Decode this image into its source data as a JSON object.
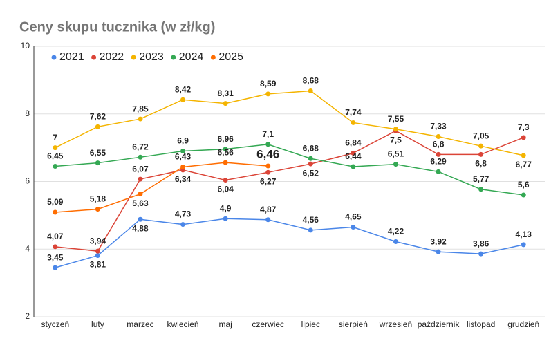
{
  "chart_data": {
    "type": "line",
    "title": "Ceny skupu tucznika (w zł/kg)",
    "categories": [
      "styczeń",
      "luty",
      "marzec",
      "kwiecień",
      "maj",
      "czerwiec",
      "lipiec",
      "sierpień",
      "wrzesień",
      "październik",
      "listopad",
      "grudzień"
    ],
    "series": [
      {
        "name": "2021",
        "color": "#4a86e8",
        "values": [
          3.45,
          3.81,
          4.88,
          4.73,
          4.9,
          4.87,
          4.56,
          4.65,
          4.22,
          3.92,
          3.86,
          4.13
        ],
        "value_labels": [
          "3,45",
          "3,81",
          "4,88",
          "4,73",
          "4,9",
          "4,87",
          "4,56",
          "4,65",
          "4,22",
          "3,92",
          "3,86",
          "4,13"
        ]
      },
      {
        "name": "2022",
        "color": "#db4437",
        "values": [
          4.07,
          3.94,
          6.07,
          6.34,
          6.04,
          6.27,
          6.52,
          6.84,
          7.5,
          6.8,
          6.8,
          7.3
        ],
        "value_labels": [
          "4,07",
          "3,94",
          "6,07",
          "6,34",
          "6,04",
          "6,27",
          "6,52",
          "6,84",
          "7,5",
          "6,8",
          "6,8",
          "7,3"
        ]
      },
      {
        "name": "2023",
        "color": "#f4b400",
        "values": [
          7,
          7.62,
          7.85,
          8.42,
          8.31,
          8.59,
          8.68,
          7.74,
          7.55,
          7.33,
          7.05,
          6.77
        ],
        "value_labels": [
          "7",
          "7,62",
          "7,85",
          "8,42",
          "8,31",
          "8,59",
          "8,68",
          "7,74",
          "7,55",
          "7,33",
          "7,05",
          "6,77"
        ]
      },
      {
        "name": "2024",
        "color": "#34a853",
        "values": [
          6.45,
          6.55,
          6.72,
          6.9,
          6.96,
          7.1,
          6.68,
          6.44,
          6.51,
          6.29,
          5.77,
          5.6
        ],
        "value_labels": [
          "6,45",
          "6,55",
          "6,72",
          "6,9",
          "6,96",
          "7,1",
          "6,68",
          "6,44",
          "6,51",
          "6,29",
          "5,77",
          "5,6"
        ]
      },
      {
        "name": "2025",
        "color": "#ff6d01",
        "values": [
          5.09,
          5.18,
          5.63,
          6.43,
          6.56,
          6.46,
          null,
          null,
          null,
          null,
          null,
          null
        ],
        "value_labels": [
          "5,09",
          "5,18",
          "5,63",
          "6,43",
          "6,56",
          "6,46",
          null,
          null,
          null,
          null,
          null,
          null
        ]
      }
    ],
    "ylim": [
      2,
      10
    ],
    "yticks": [
      2,
      4,
      6,
      8,
      10
    ],
    "grid": true,
    "legend": "top-left"
  }
}
